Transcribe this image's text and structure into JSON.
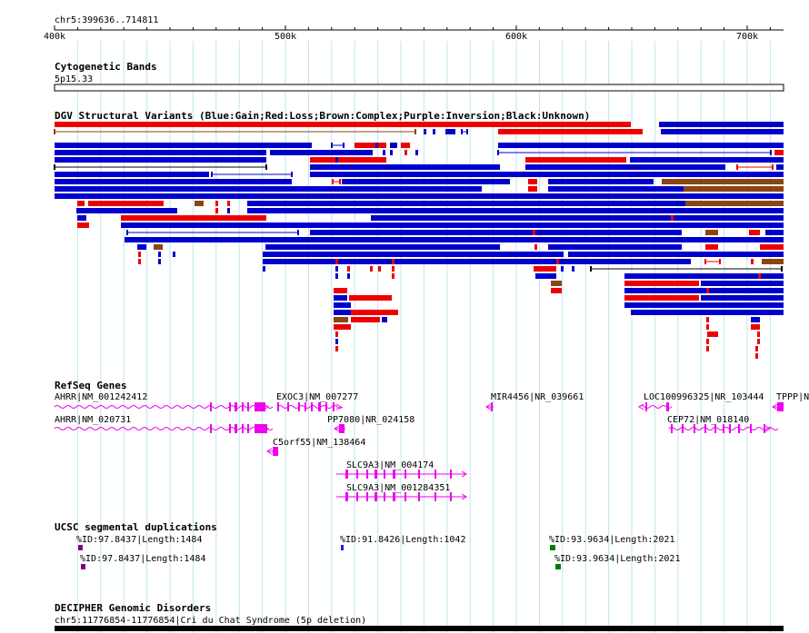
{
  "location": "chr5:399636..714811",
  "ruler": {
    "ticks": [
      "400k",
      "500k",
      "600k",
      "700k"
    ]
  },
  "colors": {
    "gain": "#0000cc",
    "loss": "#ee0000",
    "complex": "#8b4513",
    "inversion": "#9900cc",
    "unknown": "#000000",
    "gene": "#ee00ee",
    "grid": "#bfe4ee",
    "dup_purple": "#800080",
    "dup_blue": "#1a1aff",
    "dup_green": "#007a00"
  },
  "tracks": {
    "cytoband": {
      "title": "Cytogenetic Bands",
      "label": "5p15.33"
    },
    "dgv": {
      "title": "DGV Structural Variants (Blue:Gain;Red:Loss;Brown:Complex;Purple:Inversion;Black:Unknown)"
    },
    "refseq": {
      "title": "RefSeq Genes",
      "genes": [
        {
          "label": "AHRR|NM_001242412"
        },
        {
          "label": "AHRR|NM_020731"
        },
        {
          "label": "EXOC3|NM_007277"
        },
        {
          "label": "PP7080|NR_024158"
        },
        {
          "label": "C5orf55|NM_138464"
        },
        {
          "label": "SLC9A3|NM_004174"
        },
        {
          "label": "SLC9A3|NM_001284351"
        },
        {
          "label": "MIR4456|NR_039661"
        },
        {
          "label": "LOC100996325|NR_103444"
        },
        {
          "label": "CEP72|NM_018140"
        },
        {
          "label": "TPPP|N"
        }
      ]
    },
    "segdups": {
      "title": "UCSC segmental duplications",
      "items": [
        {
          "label": "%ID:97.8437|Length:1484"
        },
        {
          "label": "%ID:97.8437|Length:1484"
        },
        {
          "label": "%ID:91.8426|Length:1042"
        },
        {
          "label": "%ID:93.9634|Length:2021"
        },
        {
          "label": "%ID:93.9634|Length:2021"
        }
      ]
    },
    "decipher": {
      "title": "DECIPHER Genomic Disorders",
      "label": "chr5:11776854-11776854|Cri du Chat Syndrome (5p deletion)"
    }
  }
}
